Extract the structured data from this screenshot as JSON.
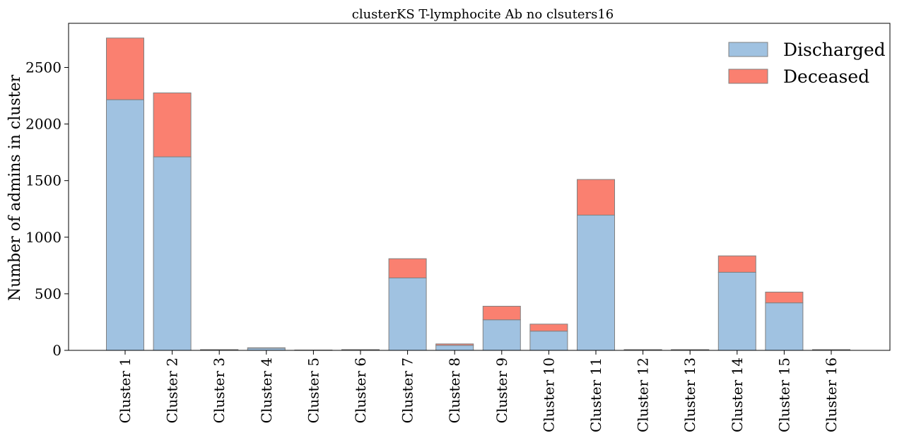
{
  "chart_data": {
    "type": "bar",
    "stacked": true,
    "title": "clusterKS T-lymphocite Ab no clsuters16",
    "xlabel": "",
    "ylabel": "Number of admins in cluster",
    "ylim": [
      0,
      2890
    ],
    "yticks": [
      0,
      500,
      1000,
      1500,
      2000,
      2500
    ],
    "categories": [
      "Cluster 1",
      "Cluster 2",
      "Cluster 3",
      "Cluster 4",
      "Cluster 5",
      "Cluster 6",
      "Cluster 7",
      "Cluster 8",
      "Cluster 9",
      "Cluster 10",
      "Cluster 11",
      "Cluster 12",
      "Cluster 13",
      "Cluster 14",
      "Cluster 15",
      "Cluster 16"
    ],
    "series": [
      {
        "name": "Discharged",
        "color": "#a0c2e1",
        "values": [
          2215,
          1710,
          5,
          20,
          3,
          5,
          640,
          45,
          270,
          170,
          1195,
          5,
          5,
          690,
          420,
          5
        ]
      },
      {
        "name": "Deceased",
        "color": "#fa8070",
        "values": [
          545,
          565,
          2,
          3,
          0,
          2,
          170,
          12,
          120,
          62,
          315,
          2,
          2,
          145,
          95,
          2
        ]
      }
    ],
    "bar_edge_color": "#808080",
    "grid": false,
    "legend_position": "top-right"
  }
}
